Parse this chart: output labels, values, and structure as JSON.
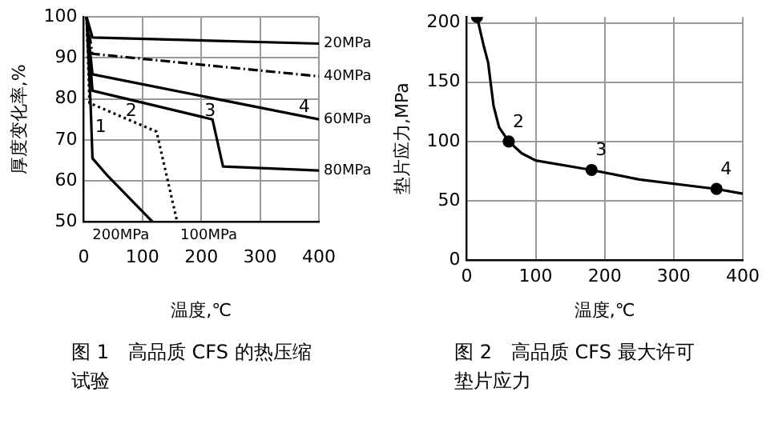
{
  "chart_data": [
    {
      "type": "line",
      "title": "图 1　高品质 CFS 的热压缩试验",
      "xlabel": "温度,℃",
      "ylabel": "厚度变化率,%",
      "xlim": [
        0,
        400
      ],
      "xticks": [
        0,
        100,
        200,
        300,
        400
      ],
      "ylim": [
        50,
        100
      ],
      "yticks": [
        50,
        60,
        70,
        80,
        90,
        100
      ],
      "grid": true,
      "legend": false,
      "marker": "none",
      "series": [
        {
          "name": "20MPa",
          "color": "#000000",
          "line_style": "solid",
          "x": [
            5,
            15,
            400
          ],
          "values": [
            100,
            95,
            93.5
          ]
        },
        {
          "name": "40MPa",
          "color": "#000000",
          "line_style": "dashed",
          "x": [
            5,
            15,
            400
          ],
          "values": [
            100,
            91,
            85.5
          ]
        },
        {
          "name": "60MPa",
          "color": "#000000",
          "line_style": "solid",
          "x": [
            5,
            15,
            400
          ],
          "values": [
            100,
            86,
            75
          ]
        },
        {
          "name": "80MPa",
          "color": "#000000",
          "line_style": "solid",
          "x": [
            5,
            15,
            219,
            237,
            400
          ],
          "values": [
            100,
            82,
            75,
            63.5,
            62.5
          ]
        },
        {
          "name": "100MPa",
          "color": "#000000",
          "line_style": "dotted",
          "x": [
            5,
            10,
            124,
            159
          ],
          "values": [
            100,
            79,
            72,
            50
          ]
        },
        {
          "name": "200MPa",
          "color": "#000000",
          "line_style": "solid",
          "x": [
            5,
            12,
            15,
            39,
            117
          ],
          "values": [
            100,
            78,
            65.5,
            61.5,
            50
          ]
        }
      ],
      "annotations": [
        {
          "text": "1",
          "x": 29,
          "y": 73
        },
        {
          "text": "2",
          "x": 81,
          "y": 77
        },
        {
          "text": "3",
          "x": 215,
          "y": 77
        },
        {
          "text": "4",
          "x": 375,
          "y": 78
        }
      ]
    },
    {
      "type": "line",
      "title": "图 2　高品质 CFS 最大许可垫片应力",
      "xlabel": "温度,℃",
      "ylabel": "垫片应力,MPa",
      "xlim": [
        0,
        400
      ],
      "xticks": [
        0,
        100,
        200,
        300,
        400
      ],
      "ylim": [
        0,
        205
      ],
      "yticks": [
        0,
        50,
        100,
        150,
        200
      ],
      "grid": true,
      "legend": false,
      "marker": "none",
      "series": [
        {
          "color": "#000000",
          "line_style": "solid",
          "x": [
            15,
            25,
            31,
            39,
            47,
            61,
            80,
            100,
            181,
            250,
            362,
            400
          ],
          "values": [
            205,
            180,
            167,
            130,
            112,
            100,
            90,
            84,
            76,
            68,
            60,
            56
          ]
        },
        {
          "type": "scatter",
          "marker": "circle",
          "color": "#000000",
          "x": [
            15,
            61,
            181,
            362
          ],
          "values": [
            205,
            100,
            76,
            60
          ]
        }
      ],
      "annotations": [
        {
          "text": "2",
          "x": 61,
          "y": 100
        },
        {
          "text": "3",
          "x": 181,
          "y": 76
        },
        {
          "text": "4",
          "x": 362,
          "y": 60
        }
      ]
    }
  ]
}
